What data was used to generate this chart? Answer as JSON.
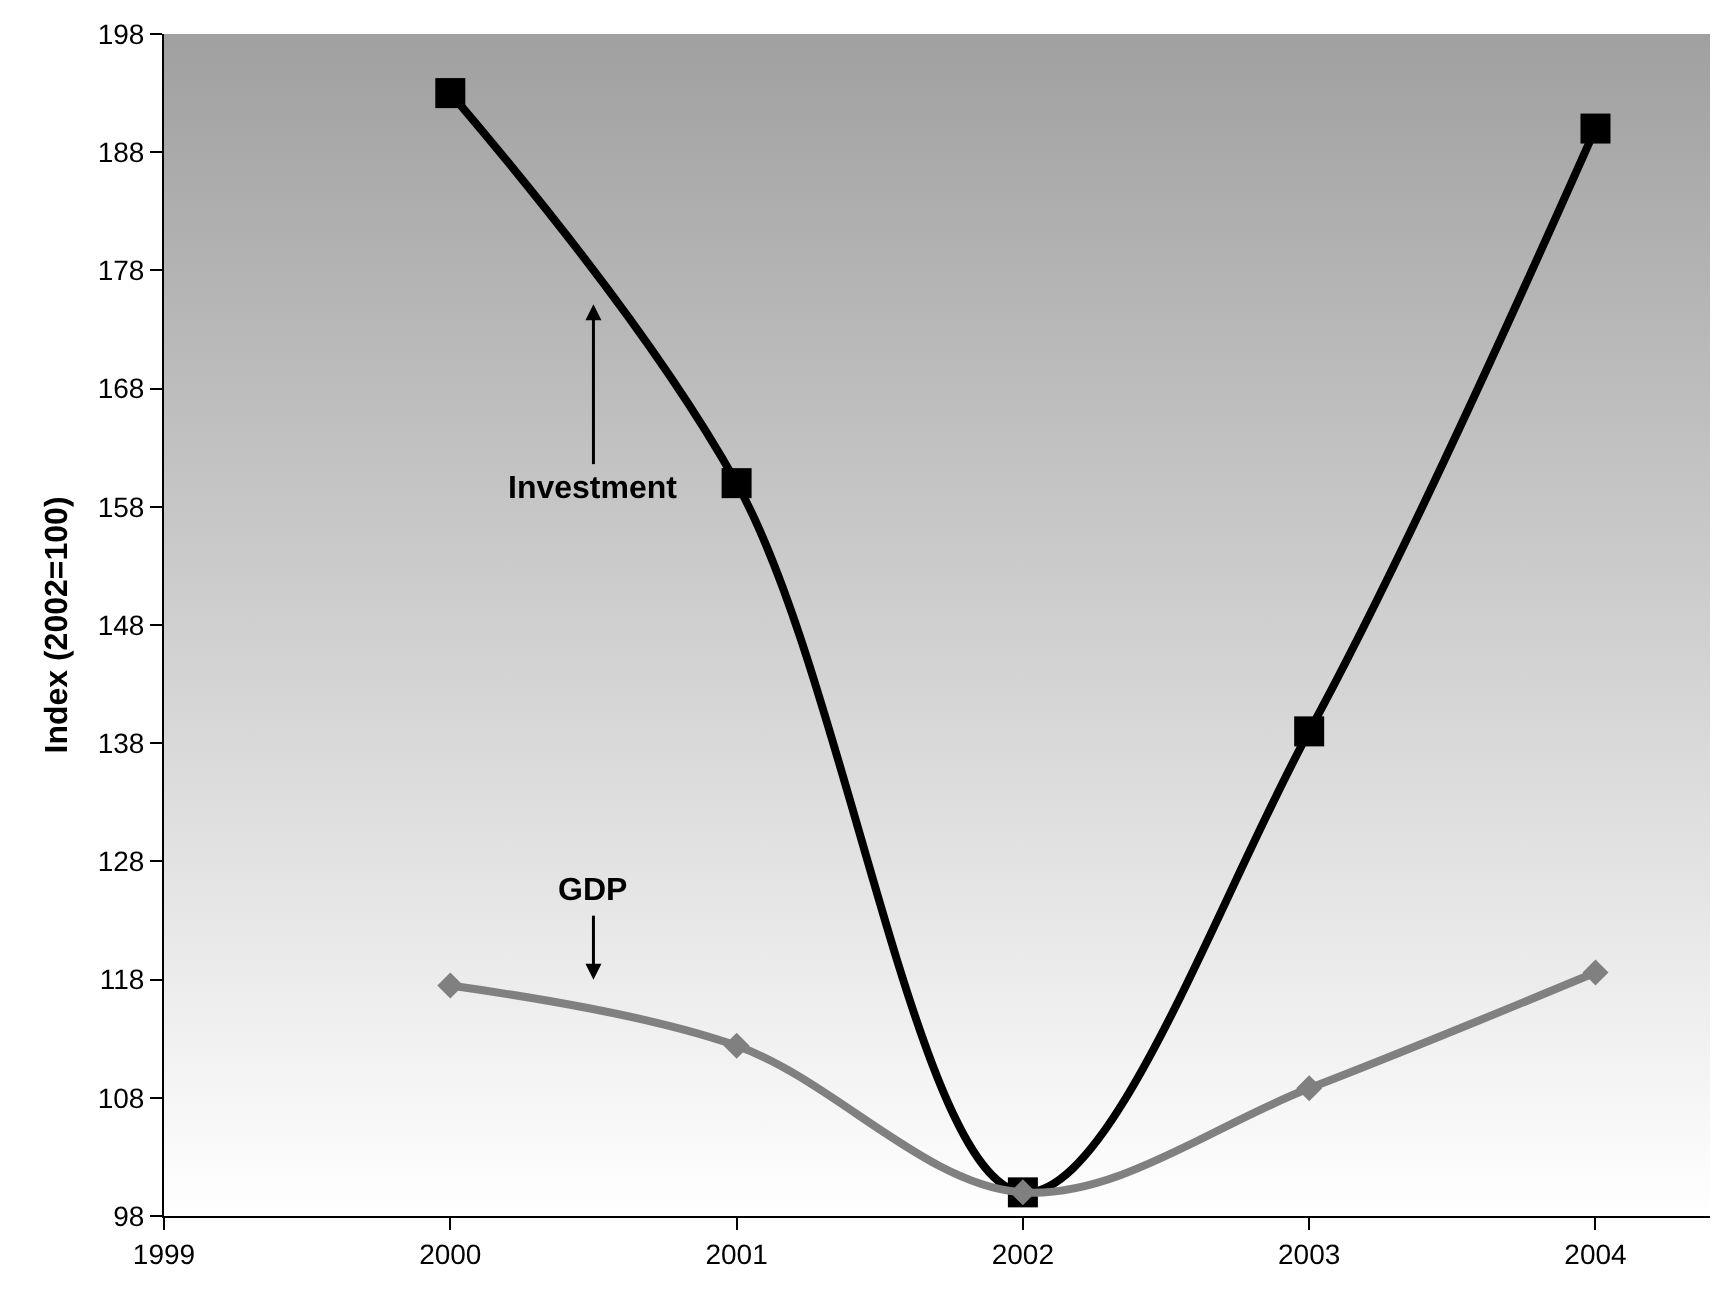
{
  "chart_data": {
    "type": "line",
    "ylabel": "Index (2002=100)",
    "x": [
      2000,
      2001,
      2002,
      2003,
      2004
    ],
    "series": [
      {
        "name": "Investment",
        "color": "#000000",
        "marker": "square",
        "values": [
          193,
          160,
          100,
          139,
          190
        ]
      },
      {
        "name": "GDP",
        "color": "#808080",
        "marker": "diamond",
        "values": [
          117.5,
          112.4,
          100,
          108.8,
          118.6
        ]
      }
    ],
    "xlim": [
      1999,
      2004.4
    ],
    "xticks": [
      1999,
      2000,
      2001,
      2002,
      2003,
      2004
    ],
    "ylim": [
      98,
      198
    ],
    "yticks": [
      98,
      108,
      118,
      128,
      138,
      148,
      158,
      168,
      178,
      188,
      198
    ],
    "grid": false,
    "legend": false,
    "line_style": "solid"
  }
}
